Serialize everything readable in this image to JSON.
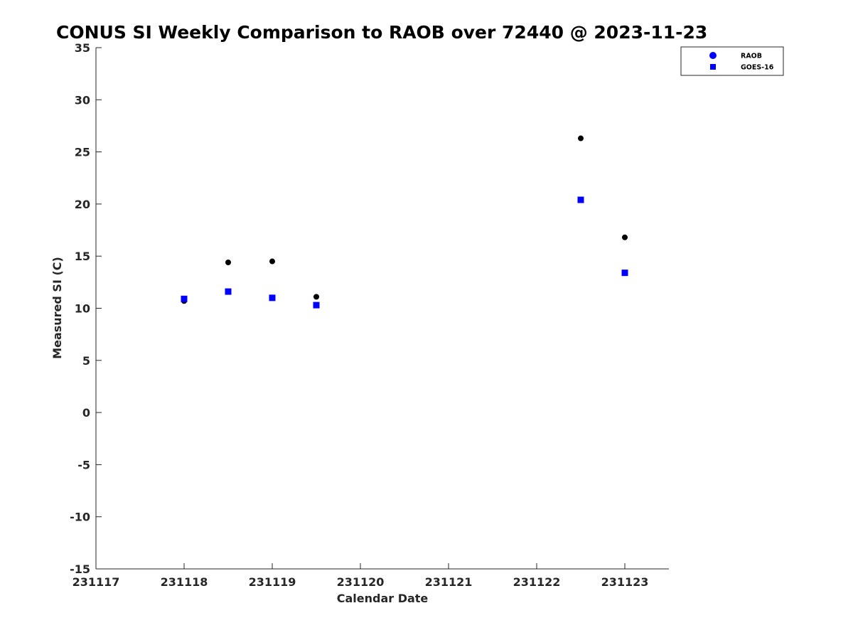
{
  "chart_data": {
    "type": "scatter",
    "title": "CONUS SI Weekly Comparison to RAOB over 72440 @ 2023-11-23",
    "xlabel": "Calendar Date",
    "ylabel": "Measured SI (C)",
    "xlim": [
      231117,
      231123.5
    ],
    "ylim": [
      -15,
      35
    ],
    "x_tick_labels": [
      "231117",
      "231118",
      "231119",
      "231120",
      "231121",
      "231122",
      "231123"
    ],
    "x_ticks": [
      231117,
      231118,
      231119,
      231120,
      231121,
      231122,
      231123
    ],
    "y_ticks": [
      35,
      30,
      25,
      20,
      15,
      10,
      5,
      0,
      -5,
      -10,
      -15
    ],
    "y_tick_labels": [
      "35",
      "30",
      "25",
      "20",
      "15",
      "10",
      "5",
      "0",
      "-5",
      "-10",
      "-15"
    ],
    "grid": false,
    "legend_position": "top-right",
    "series": [
      {
        "name": "RAOB",
        "marker": "circle",
        "color": "#000000",
        "legend_color": "#0000ff",
        "x": [
          231118.0,
          231118.5,
          231119.0,
          231119.5,
          231122.5,
          231123.0
        ],
        "y": [
          10.7,
          14.4,
          14.5,
          11.1,
          26.3,
          16.8
        ]
      },
      {
        "name": "GOES-16",
        "marker": "square",
        "color": "#0000ff",
        "legend_color": "#0000ff",
        "x": [
          231118.0,
          231118.5,
          231119.0,
          231119.5,
          231122.5,
          231123.0
        ],
        "y": [
          10.9,
          11.6,
          11.0,
          10.3,
          20.4,
          13.4
        ]
      }
    ]
  }
}
